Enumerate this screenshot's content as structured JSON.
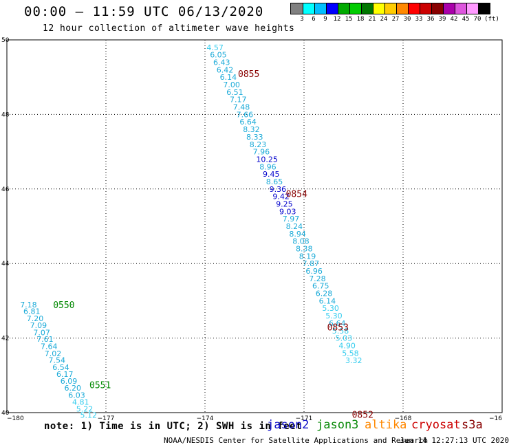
{
  "title": "00:00 – 11:59 UTC 06/13/2020",
  "subtitle": "12 hour collection of altimeter wave heights",
  "legend": {
    "colors": [
      "#808080",
      "#00ffff",
      "#00bfff",
      "#0000ff",
      "#00aa00",
      "#00cc00",
      "#007700",
      "#ffff00",
      "#ffcc00",
      "#ff8800",
      "#ff0000",
      "#cc0000",
      "#880000",
      "#aa00aa",
      "#dd55dd",
      "#ff99ff",
      "#000000"
    ],
    "labels": [
      "3",
      "6",
      "9",
      "12",
      "15",
      "18",
      "21",
      "24",
      "27",
      "30",
      "33",
      "36",
      "39",
      "42",
      "45",
      "70",
      "(ft)"
    ]
  },
  "axes": {
    "x_ticks": [
      "−180",
      "−177",
      "−174",
      "−171",
      "−168",
      "−16"
    ],
    "y_ticks": [
      "50",
      "48",
      "46",
      "44",
      "42",
      "40"
    ]
  },
  "chart_data": {
    "type": "scatter",
    "x_range": [
      -180,
      -165
    ],
    "y_range": [
      40,
      50
    ],
    "grid": true,
    "tracks": [
      {
        "satellite": "jason3",
        "times": [
          {
            "label": "0550",
            "lon": -178.6,
            "lat": 42.9
          },
          {
            "label": "0551",
            "lon": -177.5,
            "lat": 40.75
          }
        ],
        "points": [
          {
            "v": "7.18",
            "lon": -179.6,
            "lat": 42.9
          },
          {
            "v": "6.81",
            "lon": -179.5,
            "lat": 42.72
          },
          {
            "v": "7.20",
            "lon": -179.4,
            "lat": 42.53
          },
          {
            "v": "7.09",
            "lon": -179.3,
            "lat": 42.34
          },
          {
            "v": "7.07",
            "lon": -179.2,
            "lat": 42.15
          },
          {
            "v": "7.61",
            "lon": -179.1,
            "lat": 41.97
          },
          {
            "v": "7.64",
            "lon": -178.98,
            "lat": 41.78
          },
          {
            "v": "7.02",
            "lon": -178.86,
            "lat": 41.59
          },
          {
            "v": "7.54",
            "lon": -178.74,
            "lat": 41.41
          },
          {
            "v": "6.54",
            "lon": -178.62,
            "lat": 41.22
          },
          {
            "v": "6.17",
            "lon": -178.5,
            "lat": 41.03
          },
          {
            "v": "6.09",
            "lon": -178.38,
            "lat": 40.85
          },
          {
            "v": "6.20",
            "lon": -178.26,
            "lat": 40.66
          },
          {
            "v": "6.03",
            "lon": -178.14,
            "lat": 40.47
          },
          {
            "v": "4.81",
            "lon": -178.02,
            "lat": 40.29
          },
          {
            "v": "5.22",
            "lon": -177.9,
            "lat": 40.1
          },
          {
            "v": "5.12",
            "lon": -177.78,
            "lat": 39.94
          }
        ]
      },
      {
        "satellite": "cryosat",
        "times": [
          {
            "label": "0855",
            "lon": -173.0,
            "lat": 49.1
          },
          {
            "label": "0854",
            "lon": -171.55,
            "lat": 45.88
          },
          {
            "label": "0853",
            "lon": -170.3,
            "lat": 42.3
          },
          {
            "label": "0852",
            "lon": -169.55,
            "lat": 39.95
          }
        ],
        "points": [
          {
            "v": "4.57",
            "lon": -173.95,
            "lat": 49.8
          },
          {
            "v": "6.05",
            "lon": -173.85,
            "lat": 49.6
          },
          {
            "v": "6.43",
            "lon": -173.75,
            "lat": 49.4
          },
          {
            "v": "6.42",
            "lon": -173.65,
            "lat": 49.2
          },
          {
            "v": "6.14",
            "lon": -173.55,
            "lat": 49.0
          },
          {
            "v": "7.00",
            "lon": -173.45,
            "lat": 48.8
          },
          {
            "v": "6.51",
            "lon": -173.35,
            "lat": 48.6
          },
          {
            "v": "7.17",
            "lon": -173.25,
            "lat": 48.4
          },
          {
            "v": "7.48",
            "lon": -173.15,
            "lat": 48.2
          },
          {
            "v": "7.66",
            "lon": -173.05,
            "lat": 48.0
          },
          {
            "v": "6.64",
            "lon": -172.95,
            "lat": 47.8
          },
          {
            "v": "8.32",
            "lon": -172.85,
            "lat": 47.6
          },
          {
            "v": "8.33",
            "lon": -172.75,
            "lat": 47.4
          },
          {
            "v": "8.23",
            "lon": -172.65,
            "lat": 47.2
          },
          {
            "v": "7.96",
            "lon": -172.55,
            "lat": 47.0
          },
          {
            "v": "10.25",
            "lon": -172.45,
            "lat": 46.8
          },
          {
            "v": "8.96",
            "lon": -172.35,
            "lat": 46.6
          },
          {
            "v": "9.45",
            "lon": -172.25,
            "lat": 46.4
          },
          {
            "v": "8.65",
            "lon": -172.15,
            "lat": 46.2
          },
          {
            "v": "9.36",
            "lon": -172.05,
            "lat": 46.0
          },
          {
            "v": "9.42",
            "lon": -171.95,
            "lat": 45.8
          },
          {
            "v": "9.25",
            "lon": -171.85,
            "lat": 45.6
          },
          {
            "v": "9.03",
            "lon": -171.75,
            "lat": 45.4
          },
          {
            "v": "7.97",
            "lon": -171.65,
            "lat": 45.2
          },
          {
            "v": "8.24",
            "lon": -171.55,
            "lat": 45.0
          },
          {
            "v": "8.94",
            "lon": -171.45,
            "lat": 44.8
          },
          {
            "v": "8.08",
            "lon": -171.35,
            "lat": 44.6
          },
          {
            "v": "8.38",
            "lon": -171.25,
            "lat": 44.4
          },
          {
            "v": "8.19",
            "lon": -171.15,
            "lat": 44.2
          },
          {
            "v": "7.87",
            "lon": -171.05,
            "lat": 44.0
          },
          {
            "v": "6.96",
            "lon": -170.95,
            "lat": 43.8
          },
          {
            "v": "7.28",
            "lon": -170.85,
            "lat": 43.6
          },
          {
            "v": "6.75",
            "lon": -170.75,
            "lat": 43.4
          },
          {
            "v": "6.28",
            "lon": -170.65,
            "lat": 43.2
          },
          {
            "v": "6.14",
            "lon": -170.55,
            "lat": 43.0
          },
          {
            "v": "5.30",
            "lon": -170.45,
            "lat": 42.8
          },
          {
            "v": "5.30",
            "lon": -170.35,
            "lat": 42.6
          },
          {
            "v": "6.64",
            "lon": -170.25,
            "lat": 42.4
          },
          {
            "v": "5.58",
            "lon": -170.15,
            "lat": 42.2
          },
          {
            "v": "5.03",
            "lon": -170.05,
            "lat": 42.0
          },
          {
            "v": "4.90",
            "lon": -169.95,
            "lat": 41.8
          },
          {
            "v": "5.58",
            "lon": -169.85,
            "lat": 41.6
          },
          {
            "v": "3.32",
            "lon": -169.75,
            "lat": 41.4
          }
        ]
      }
    ]
  },
  "footer": {
    "note": "note: 1) Time is in UTC; 2) SWH is in feet",
    "satellites": [
      {
        "name": "jason2",
        "color": "#1010c8"
      },
      {
        "name": "jason3",
        "color": "#0a8a0a"
      },
      {
        "name": "altika",
        "color": "#ff8800"
      },
      {
        "name": "cryosat",
        "color": "#cc0000"
      },
      {
        "name": "s3a",
        "color": "#880000"
      }
    ],
    "credit": "NOAA/NESDIS Center for Satellite Applications and Research",
    "timestamp": "Jun 14 12:27:13 UTC 2020"
  }
}
